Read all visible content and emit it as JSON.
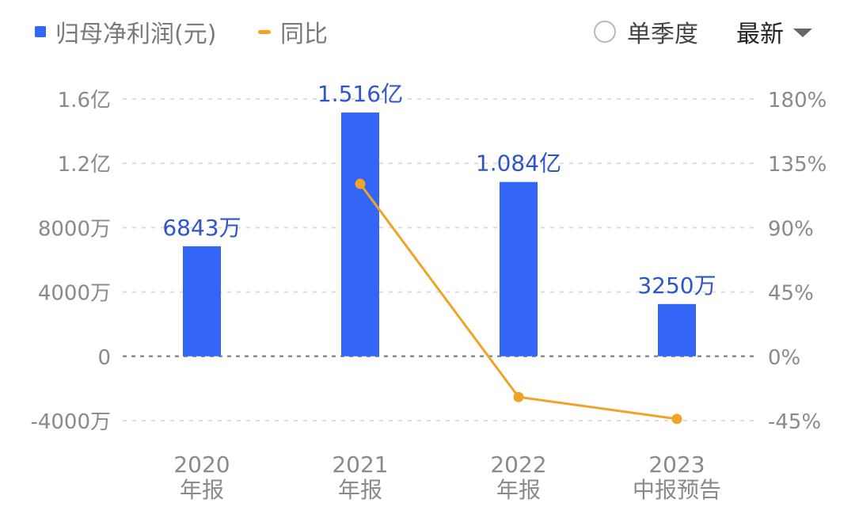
{
  "legend": {
    "bar_label": "归母净利润(元)",
    "line_label": "同比"
  },
  "controls": {
    "season_label": "单季度",
    "period_select": "最新"
  },
  "colors": {
    "bar": "#3366f6",
    "line": "#f0a326",
    "bar_label": "#2f55c9",
    "axis_text": "#8a8a8a",
    "grid": "#dcdcdc"
  },
  "chart_data": {
    "type": "bar",
    "categories": [
      [
        "2020",
        "年报"
      ],
      [
        "2021",
        "年报"
      ],
      [
        "2022",
        "年报"
      ],
      [
        "2023",
        "中报预告"
      ]
    ],
    "series": [
      {
        "name": "归母净利润(元)",
        "type": "bar",
        "axis": "left",
        "values": [
          68430000,
          151600000,
          108400000,
          32500000
        ],
        "labels": [
          "6843万",
          "1.516亿",
          "1.084亿",
          "3250万"
        ]
      },
      {
        "name": "同比",
        "type": "line",
        "axis": "right",
        "values": [
          null,
          120.6,
          -28.5,
          -43.8
        ]
      }
    ],
    "y_left": {
      "ticks": [
        -40000000,
        0,
        40000000,
        80000000,
        120000000,
        160000000
      ],
      "tick_labels": [
        "-4000万",
        "0",
        "4000万",
        "8000万",
        "1.2亿",
        "1.6亿"
      ],
      "ylim": [
        -40000000,
        160000000
      ]
    },
    "y_right": {
      "ticks": [
        -45,
        0,
        45,
        90,
        135,
        180
      ],
      "tick_labels": [
        "-45%",
        "0%",
        "45%",
        "90%",
        "135%",
        "180%"
      ],
      "ylim": [
        -45,
        180
      ]
    },
    "grid": true,
    "legend_position": "top-left"
  }
}
